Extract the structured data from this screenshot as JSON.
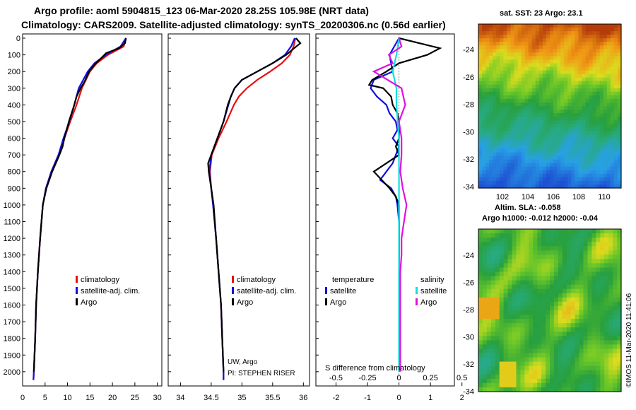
{
  "header": {
    "title_line1": "Argo profile: aoml 5904815_123 06-Mar-2020 28.25S 105.98E (NRT data)",
    "title_line2": "Climatology: CARS2009. Satellite-adjusted climatology: synTS_20200306.nc (0.56d earlier)"
  },
  "colors": {
    "climatology": "#e81010",
    "satellite": "#1010e0",
    "argo": "#000000",
    "sat_salinity": "#10e0e0",
    "argo_salinity": "#e010e0"
  },
  "chart_data": [
    {
      "type": "line",
      "name": "temperature",
      "xlim": [
        0,
        31
      ],
      "ylim": [
        2060,
        0
      ],
      "xticks": [
        "0",
        "5",
        "10",
        "15",
        "20",
        "25",
        "30"
      ],
      "yticks": [
        "0",
        "100",
        "200",
        "300",
        "400",
        "500",
        "600",
        "700",
        "800",
        "900",
        "1000",
        "1100",
        "1200",
        "1300",
        "1400",
        "1500",
        "1600",
        "1700",
        "1800",
        "1900",
        "2000"
      ],
      "legend": {
        "climatology": "climatology",
        "satellite": "satellite-adj. clim.",
        "argo": "Argo"
      },
      "series": [
        {
          "name": "climatology",
          "color": "#e81010",
          "depth": [
            0,
            50,
            100,
            150,
            200,
            300,
            400,
            500,
            600,
            700,
            800,
            900,
            1000,
            1200,
            1400,
            1600,
            1800,
            2000,
            2050
          ],
          "values": [
            23,
            22.5,
            19,
            16.5,
            15,
            13.2,
            12,
            10.6,
            9.3,
            8,
            6.4,
            5.2,
            4.5,
            3.9,
            3.4,
            3,
            2.8,
            2.5,
            2.4
          ]
        },
        {
          "name": "satellite",
          "color": "#1010e0",
          "depth": [
            0,
            50,
            100,
            150,
            200,
            300,
            400,
            500,
            600,
            700,
            800,
            900,
            1000,
            1200,
            1400,
            1600,
            1800,
            2000,
            2050
          ],
          "values": [
            23,
            21.8,
            18.5,
            16,
            14.5,
            12.5,
            11.5,
            10.4,
            9.1,
            8,
            6.4,
            5.2,
            4.5,
            3.9,
            3.4,
            3,
            2.8,
            2.5,
            2.4
          ]
        },
        {
          "name": "argo",
          "color": "#000000",
          "depth": [
            0,
            30,
            60,
            90,
            120,
            160,
            200,
            260,
            300,
            350,
            400,
            500,
            600,
            650,
            700,
            750,
            800,
            900,
            1000,
            1200,
            1400,
            1600,
            1800,
            2000
          ],
          "values": [
            23,
            22.8,
            21.5,
            18.6,
            17.5,
            16,
            14.8,
            13.8,
            12.9,
            12,
            11.5,
            10.3,
            9.3,
            8.9,
            8.2,
            7.4,
            6.6,
            5.3,
            4.5,
            3.9,
            3.4,
            3,
            2.8,
            2.5
          ]
        }
      ]
    },
    {
      "type": "line",
      "name": "salinity",
      "xlim": [
        33.8,
        36.1
      ],
      "ylim": [
        2060,
        0
      ],
      "xticks": [
        "34",
        "34.5",
        "35",
        "35.5",
        "36"
      ],
      "legend": {
        "climatology": "climatology",
        "satellite": "satellite-adj. clim.",
        "argo": "Argo"
      },
      "annotation": [
        "UW, Argo",
        "PI: STEPHEN RISER"
      ],
      "series": [
        {
          "name": "climatology",
          "color": "#e81010",
          "depth": [
            0,
            50,
            100,
            150,
            200,
            250,
            300,
            350,
            400,
            500,
            600,
            700,
            800,
            900,
            1000,
            1200,
            1400,
            1600,
            1800,
            2000,
            2050
          ],
          "values": [
            35.87,
            35.84,
            35.78,
            35.65,
            35.46,
            35.25,
            35.08,
            34.95,
            34.87,
            34.75,
            34.62,
            34.51,
            34.48,
            34.5,
            34.53,
            34.58,
            34.62,
            34.66,
            34.68,
            34.7,
            34.7
          ]
        },
        {
          "name": "satellite",
          "color": "#1010e0",
          "depth": [
            0,
            50,
            100,
            150,
            200,
            250,
            300,
            350,
            400,
            500,
            600,
            700,
            800,
            900,
            1000,
            1200,
            1400,
            1600,
            1800,
            2000,
            2050
          ],
          "values": [
            35.86,
            35.8,
            35.7,
            35.5,
            35.25,
            35.0,
            34.88,
            34.82,
            34.78,
            34.7,
            34.6,
            34.5,
            34.47,
            34.5,
            34.53,
            34.58,
            34.62,
            34.66,
            34.68,
            34.7,
            34.7
          ]
        },
        {
          "name": "argo",
          "color": "#000000",
          "depth": [
            0,
            30,
            60,
            100,
            150,
            200,
            250,
            300,
            350,
            400,
            500,
            600,
            700,
            750,
            800,
            900,
            1000,
            1200,
            1400,
            1600,
            1800,
            2000
          ],
          "values": [
            35.88,
            35.95,
            35.85,
            35.72,
            35.5,
            35.25,
            35.0,
            34.88,
            34.82,
            34.77,
            34.7,
            34.6,
            34.5,
            34.45,
            34.46,
            34.5,
            34.54,
            34.58,
            34.62,
            34.66,
            34.68,
            34.7
          ]
        }
      ]
    },
    {
      "type": "line",
      "name": "difference",
      "xlim": [
        -0.66,
        0.44
      ],
      "ylim": [
        2060,
        0
      ],
      "xticks": [
        "-0.5",
        "-0.25",
        "0",
        "0.25",
        "0.5"
      ],
      "xticks_lower": [
        "-2",
        "-1",
        "0",
        "1",
        "2"
      ],
      "xlabel": "S difference from climatology",
      "legend": {
        "temperature": "temperature",
        "salinity": "salinity",
        "satellite": "satellite",
        "argo": "Argo"
      },
      "series": [
        {
          "name": "temperature satellite",
          "color": "#1010e0",
          "depth": [
            0,
            100,
            200,
            250,
            300,
            350,
            400,
            450,
            500,
            550,
            600,
            650,
            700,
            750,
            800,
            850,
            900,
            950,
            1000,
            1100,
            1200,
            1300,
            1400,
            1500,
            1600,
            1700,
            1800,
            1900,
            2000
          ],
          "values": [
            0,
            -0.3,
            -0.2,
            -0.8,
            -0.9,
            -0.7,
            -0.4,
            -0.3,
            -0.1,
            -0.05,
            -0.2,
            0,
            -0.1,
            -0.2,
            -0.4,
            -0.6,
            -0.25,
            -0.1,
            -0.05,
            0,
            0,
            0,
            0,
            0,
            0,
            0,
            0,
            0,
            0
          ]
        },
        {
          "name": "temperature argo",
          "color": "#000000",
          "depth": [
            0,
            60,
            100,
            150,
            200,
            250,
            280,
            300,
            350,
            400,
            450,
            500,
            550,
            600,
            650,
            700,
            750,
            800,
            850,
            900,
            950,
            1000,
            1100,
            1200,
            1300,
            1400,
            1500,
            1600,
            1700,
            1800,
            1900,
            2000
          ],
          "values": [
            0,
            1.3,
            0.9,
            0,
            -0.4,
            -0.85,
            -0.95,
            -0.5,
            -0.25,
            -0.2,
            -0.05,
            0,
            0,
            0,
            -0.1,
            0,
            -0.4,
            -0.8,
            -0.55,
            -0.3,
            -0.1,
            0,
            0,
            0,
            0,
            0,
            0,
            0,
            0,
            0,
            0,
            0
          ]
        },
        {
          "name": "salinity satellite",
          "color": "#10e0e0",
          "depth": [
            0,
            100,
            200,
            300,
            400,
            500,
            600,
            700,
            800,
            900,
            1000,
            1100,
            1200,
            1300,
            1400,
            1500,
            1600,
            1700,
            1800,
            1900,
            2000
          ],
          "values": [
            0,
            -0.02,
            -0.05,
            -0.02,
            -0.02,
            -0.01,
            0,
            0,
            0,
            0,
            0,
            0,
            0,
            0,
            0,
            0,
            0,
            0,
            0,
            0,
            0
          ]
        },
        {
          "name": "salinity argo",
          "color": "#e010e0",
          "depth": [
            0,
            50,
            100,
            150,
            200,
            300,
            400,
            500,
            600,
            700,
            800,
            900,
            1000,
            1100,
            1200,
            1300,
            1400,
            1500,
            1600,
            1700,
            1800,
            1900,
            2000
          ],
          "values": [
            0,
            0.02,
            -0.08,
            -0.05,
            -0.2,
            0.02,
            0.05,
            0,
            0.02,
            0.02,
            0.01,
            0.03,
            0.06,
            0.04,
            0.02,
            0.02,
            0.01,
            0.01,
            0.01,
            0.01,
            0.01,
            0.01,
            0.01
          ]
        }
      ]
    },
    {
      "type": "heatmap",
      "name": "sst_map",
      "title": "sat. SST: 23 Argo: 23.1",
      "yticks": [
        "-24",
        "-26",
        "-28",
        "-30",
        "-32",
        "-34"
      ],
      "xticks": [
        "102",
        "104",
        "106",
        "108",
        "110"
      ]
    },
    {
      "type": "heatmap",
      "name": "sla_map",
      "title_line1": "Altim. SLA: -0.058",
      "title_line2": "Argo h1000: -0.012 h2000: -0.04",
      "yticks": [
        "-24",
        "-26",
        "-28",
        "-30",
        "-32",
        "-34"
      ]
    }
  ],
  "credit": "©IMOS 11-Mar-2020 11:41:06"
}
